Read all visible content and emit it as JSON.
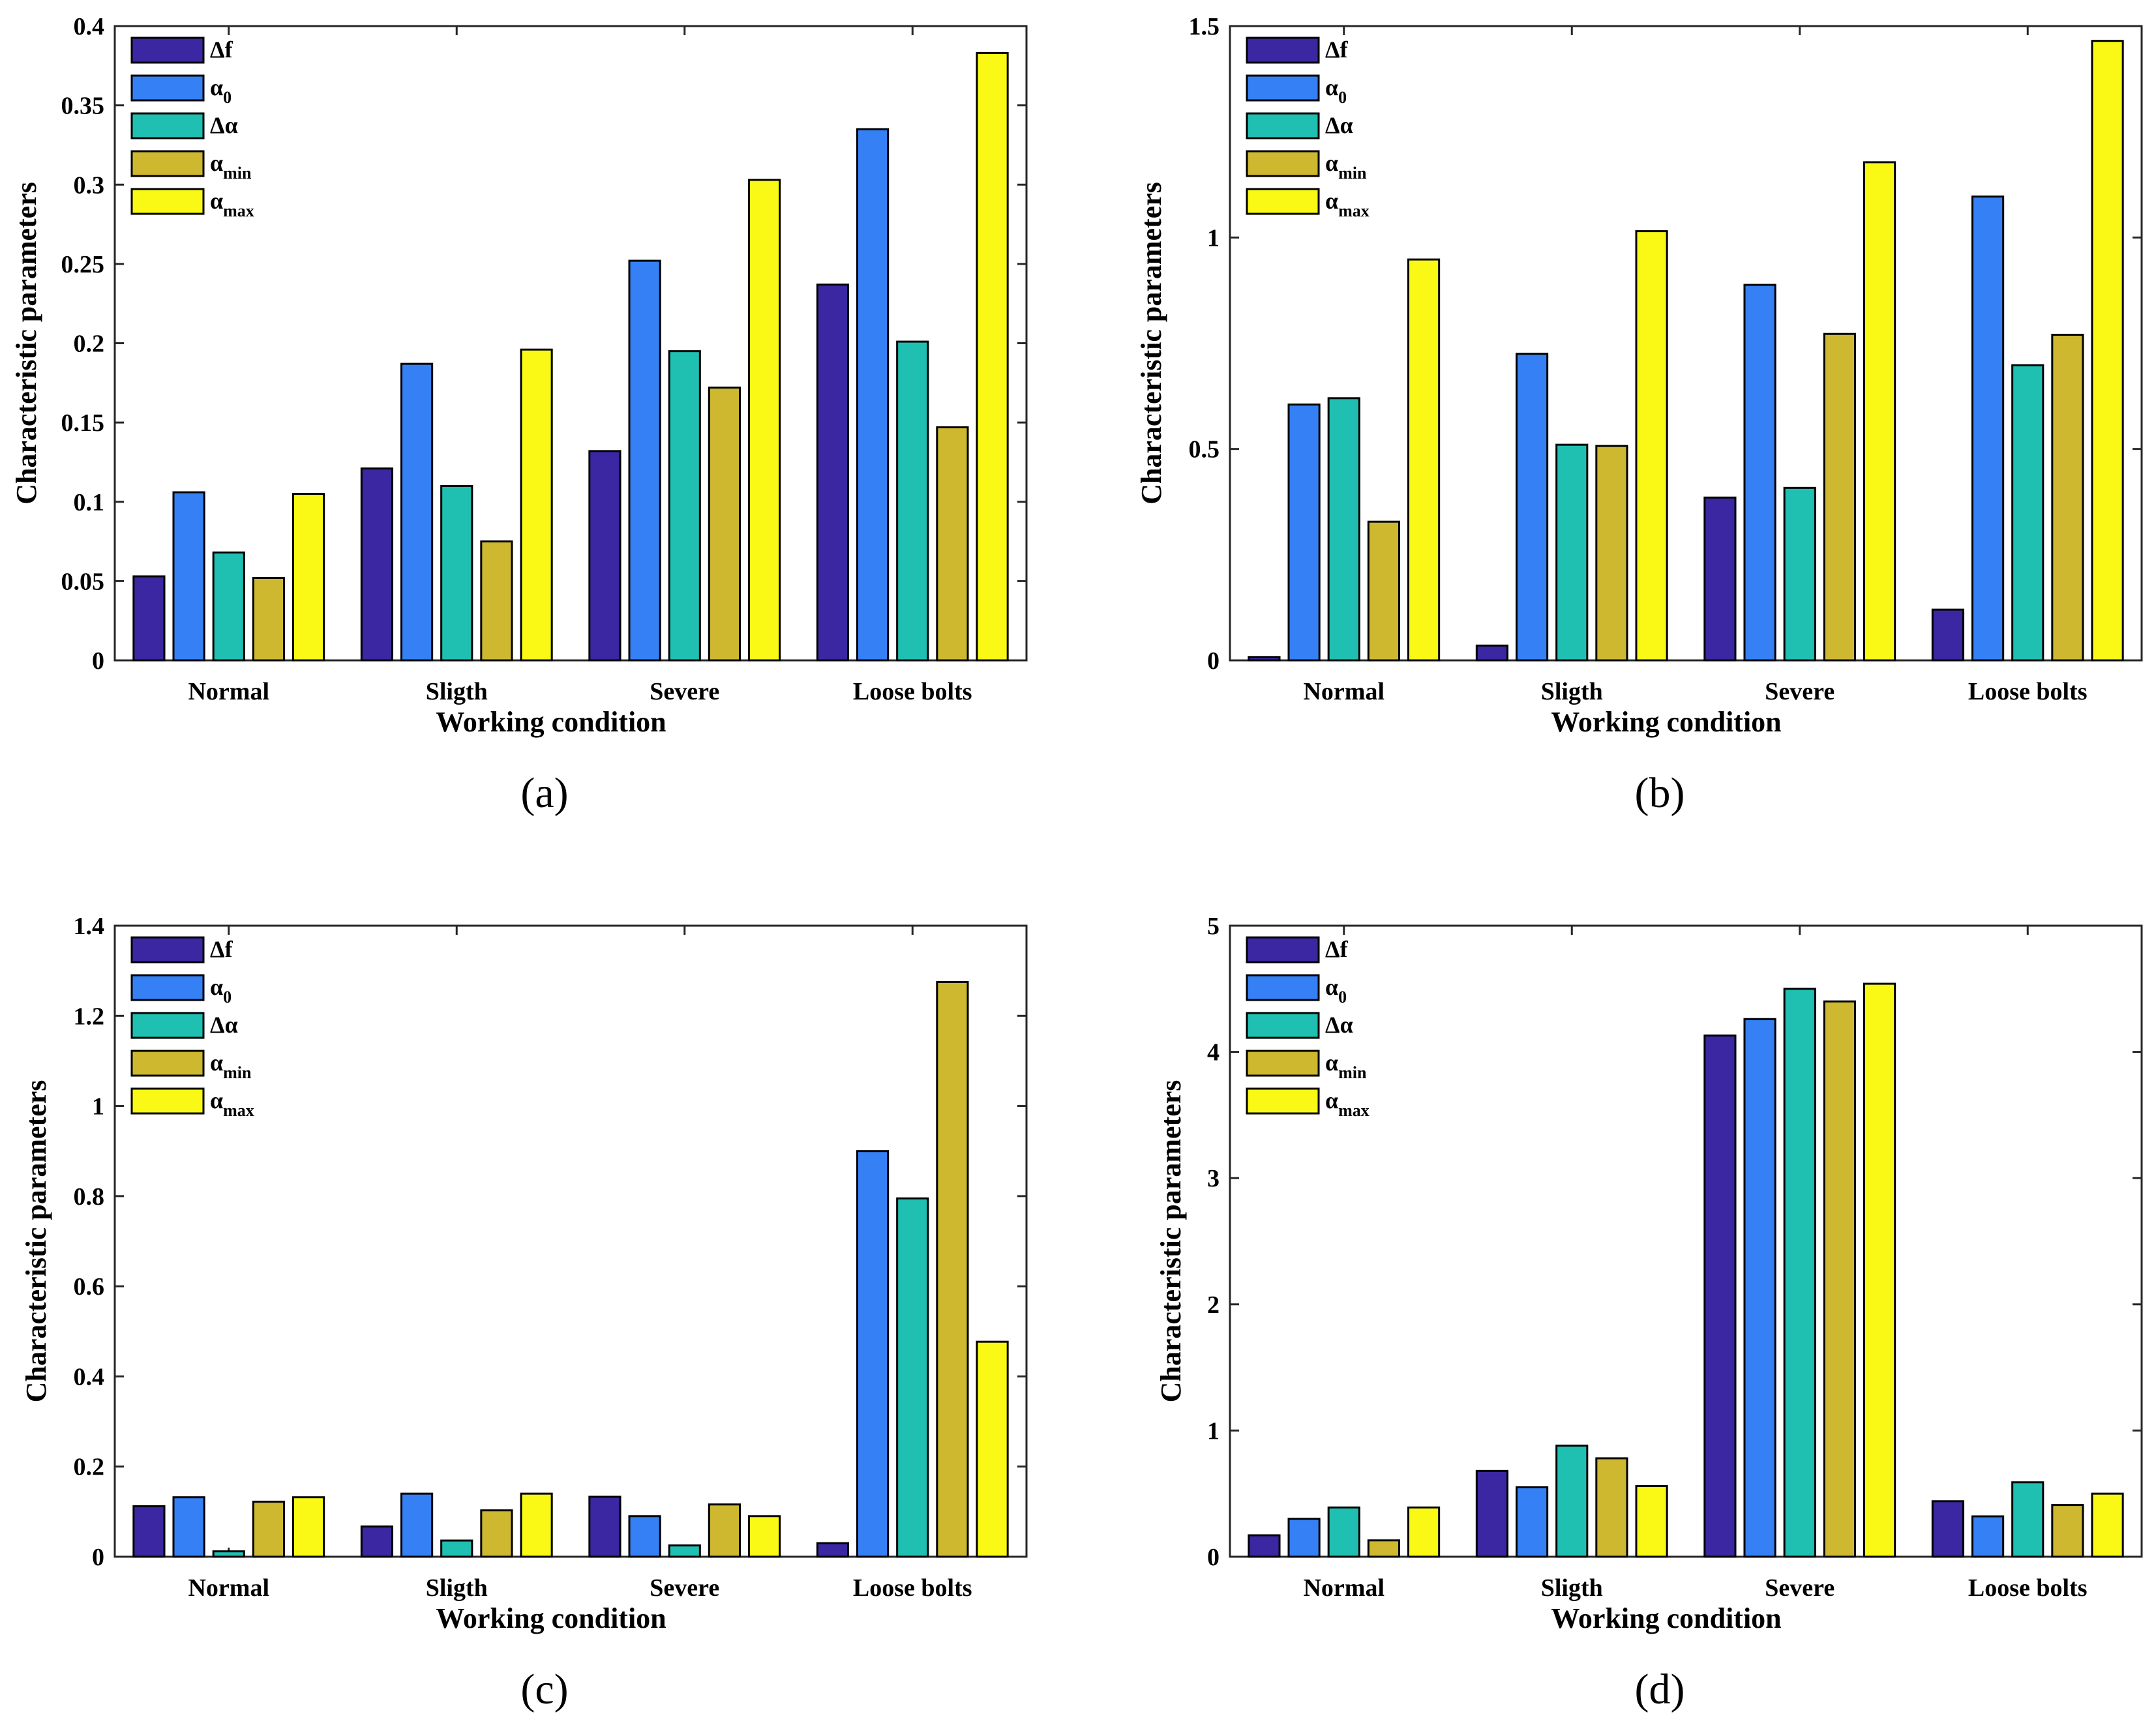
{
  "series_meta": [
    {
      "key": "df",
      "main": "Δf",
      "sub": "",
      "color": "#3b27a1"
    },
    {
      "key": "a0",
      "main": "α",
      "sub": "0",
      "color": "#3580f5"
    },
    {
      "key": "da",
      "main": "Δα",
      "sub": "",
      "color": "#1fbfb2"
    },
    {
      "key": "amin",
      "main": "α",
      "sub": "min",
      "color": "#cdb830"
    },
    {
      "key": "amax",
      "main": "α",
      "sub": "max",
      "color": "#f9f915"
    }
  ],
  "chart_data": [
    {
      "panel_label": "(a)",
      "type": "bar",
      "categories": [
        "Normal",
        "Sligth",
        "Severe",
        "Loose bolts"
      ],
      "xlabel": "Working condition",
      "ylabel": "Characteristic parameters",
      "ylim": [
        0,
        0.4
      ],
      "yticks": [
        "0",
        "0.05",
        "0.1",
        "0.15",
        "0.2",
        "0.25",
        "0.3",
        "0.35",
        "0.4"
      ],
      "ytick_values": [
        0,
        0.05,
        0.1,
        0.15,
        0.2,
        0.25,
        0.3,
        0.35,
        0.4
      ],
      "legend_position": "top-left",
      "series": [
        {
          "name": "Δf",
          "values": [
            0.053,
            0.121,
            0.132,
            0.237
          ]
        },
        {
          "name": "α0",
          "values": [
            0.106,
            0.187,
            0.252,
            0.335
          ]
        },
        {
          "name": "Δα",
          "values": [
            0.068,
            0.11,
            0.195,
            0.201
          ]
        },
        {
          "name": "αmin",
          "values": [
            0.052,
            0.075,
            0.172,
            0.147
          ]
        },
        {
          "name": "αmax",
          "values": [
            0.105,
            0.196,
            0.303,
            0.383
          ]
        }
      ]
    },
    {
      "panel_label": "(b)",
      "type": "bar",
      "categories": [
        "Normal",
        "Sligth",
        "Severe",
        "Loose bolts"
      ],
      "xlabel": "Working condition",
      "ylabel": "Characteristic parameters",
      "ylim": [
        0,
        1.5
      ],
      "yticks": [
        "0",
        "0.5",
        "1",
        "1.5"
      ],
      "ytick_values": [
        0,
        0.5,
        1,
        1.5
      ],
      "legend_position": "top-left",
      "series": [
        {
          "name": "Δf",
          "values": [
            0.008,
            0.035,
            0.385,
            0.12
          ]
        },
        {
          "name": "α0",
          "values": [
            0.605,
            0.725,
            0.888,
            1.097
          ]
        },
        {
          "name": "Δα",
          "values": [
            0.62,
            0.51,
            0.408,
            0.698
          ]
        },
        {
          "name": "αmin",
          "values": [
            0.328,
            0.507,
            0.772,
            0.77
          ]
        },
        {
          "name": "αmax",
          "values": [
            0.948,
            1.015,
            1.178,
            1.465
          ]
        }
      ]
    },
    {
      "panel_label": "(c)",
      "type": "bar",
      "categories": [
        "Normal",
        "Sligth",
        "Severe",
        "Loose bolts"
      ],
      "xlabel": "Working condition",
      "ylabel": "Characteristic parameters",
      "ylim": [
        0,
        1.4
      ],
      "yticks": [
        "0",
        "0.2",
        "0.4",
        "0.6",
        "0.8",
        "1",
        "1.2",
        "1.4"
      ],
      "ytick_values": [
        0,
        0.2,
        0.4,
        0.6,
        0.8,
        1,
        1.2,
        1.4
      ],
      "legend_position": "top-left",
      "series": [
        {
          "name": "Δf",
          "values": [
            0.112,
            0.067,
            0.133,
            0.03
          ]
        },
        {
          "name": "α0",
          "values": [
            0.132,
            0.14,
            0.09,
            0.9
          ]
        },
        {
          "name": "Δα",
          "values": [
            0.012,
            0.036,
            0.025,
            0.795
          ]
        },
        {
          "name": "αmin",
          "values": [
            0.122,
            0.103,
            0.116,
            1.275
          ]
        },
        {
          "name": "αmax",
          "values": [
            0.132,
            0.14,
            0.09,
            0.477
          ]
        }
      ]
    },
    {
      "panel_label": "(d)",
      "type": "bar",
      "categories": [
        "Normal",
        "Sligth",
        "Severe",
        "Loose bolts"
      ],
      "xlabel": "Working condition",
      "ylabel": "Characteristic parameters",
      "ylim": [
        0,
        5
      ],
      "yticks": [
        "0",
        "1",
        "2",
        "3",
        "4",
        "5"
      ],
      "ytick_values": [
        0,
        1,
        2,
        3,
        4,
        5
      ],
      "legend_position": "top-left",
      "series": [
        {
          "name": "Δf",
          "values": [
            0.17,
            0.68,
            4.13,
            0.44
          ]
        },
        {
          "name": "α0",
          "values": [
            0.3,
            0.55,
            4.26,
            0.32
          ]
        },
        {
          "name": "Δα",
          "values": [
            0.39,
            0.88,
            4.5,
            0.59
          ]
        },
        {
          "name": "αmin",
          "values": [
            0.13,
            0.78,
            4.4,
            0.41
          ]
        },
        {
          "name": "αmax",
          "values": [
            0.39,
            0.56,
            4.54,
            0.5
          ]
        }
      ]
    }
  ]
}
